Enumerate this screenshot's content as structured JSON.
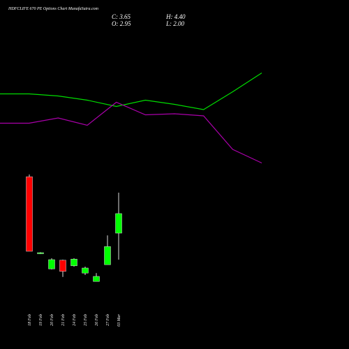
{
  "chart_data": [
    {
      "type": "candlestick",
      "title": "HDFCLIFE 670 PE Options Chart MunafaSutra.com",
      "ohlc_labels": {
        "close": "C: 3.65",
        "high": "H: 4.40",
        "open": "O: 2.95",
        "low": "L: 2.00"
      },
      "categories": [
        "18 Feb",
        "19 Feb",
        "20 Feb",
        "21 Feb",
        "24 Feb",
        "25 Feb",
        "26 Feb",
        "27 Feb",
        "03 Mar"
      ],
      "open": [
        4.97,
        2.22,
        1.67,
        1.98,
        1.78,
        1.52,
        1.22,
        1.82,
        2.95
      ],
      "high": [
        5.05,
        2.27,
        2.05,
        2.0,
        2.05,
        1.75,
        1.52,
        2.87,
        4.4
      ],
      "low": [
        2.3,
        2.2,
        1.65,
        1.38,
        1.75,
        1.45,
        1.22,
        1.82,
        2.0
      ],
      "close": [
        2.3,
        2.25,
        2.0,
        1.58,
        2.02,
        1.7,
        1.4,
        2.47,
        3.65
      ],
      "up_color": "#00ff00",
      "down_color": "#ff0000",
      "ylim": [
        0.8,
        5.3
      ]
    },
    {
      "type": "line",
      "ylim": [
        0,
        100
      ],
      "series": [
        {
          "color": "#00dd00",
          "values": [
            77,
            77,
            75,
            71,
            65,
            71,
            67,
            62,
            79,
            97
          ]
        },
        {
          "color": "#aa00aa",
          "values": [
            49,
            49,
            54,
            47,
            69,
            57,
            58,
            56,
            24,
            11
          ]
        }
      ]
    }
  ]
}
